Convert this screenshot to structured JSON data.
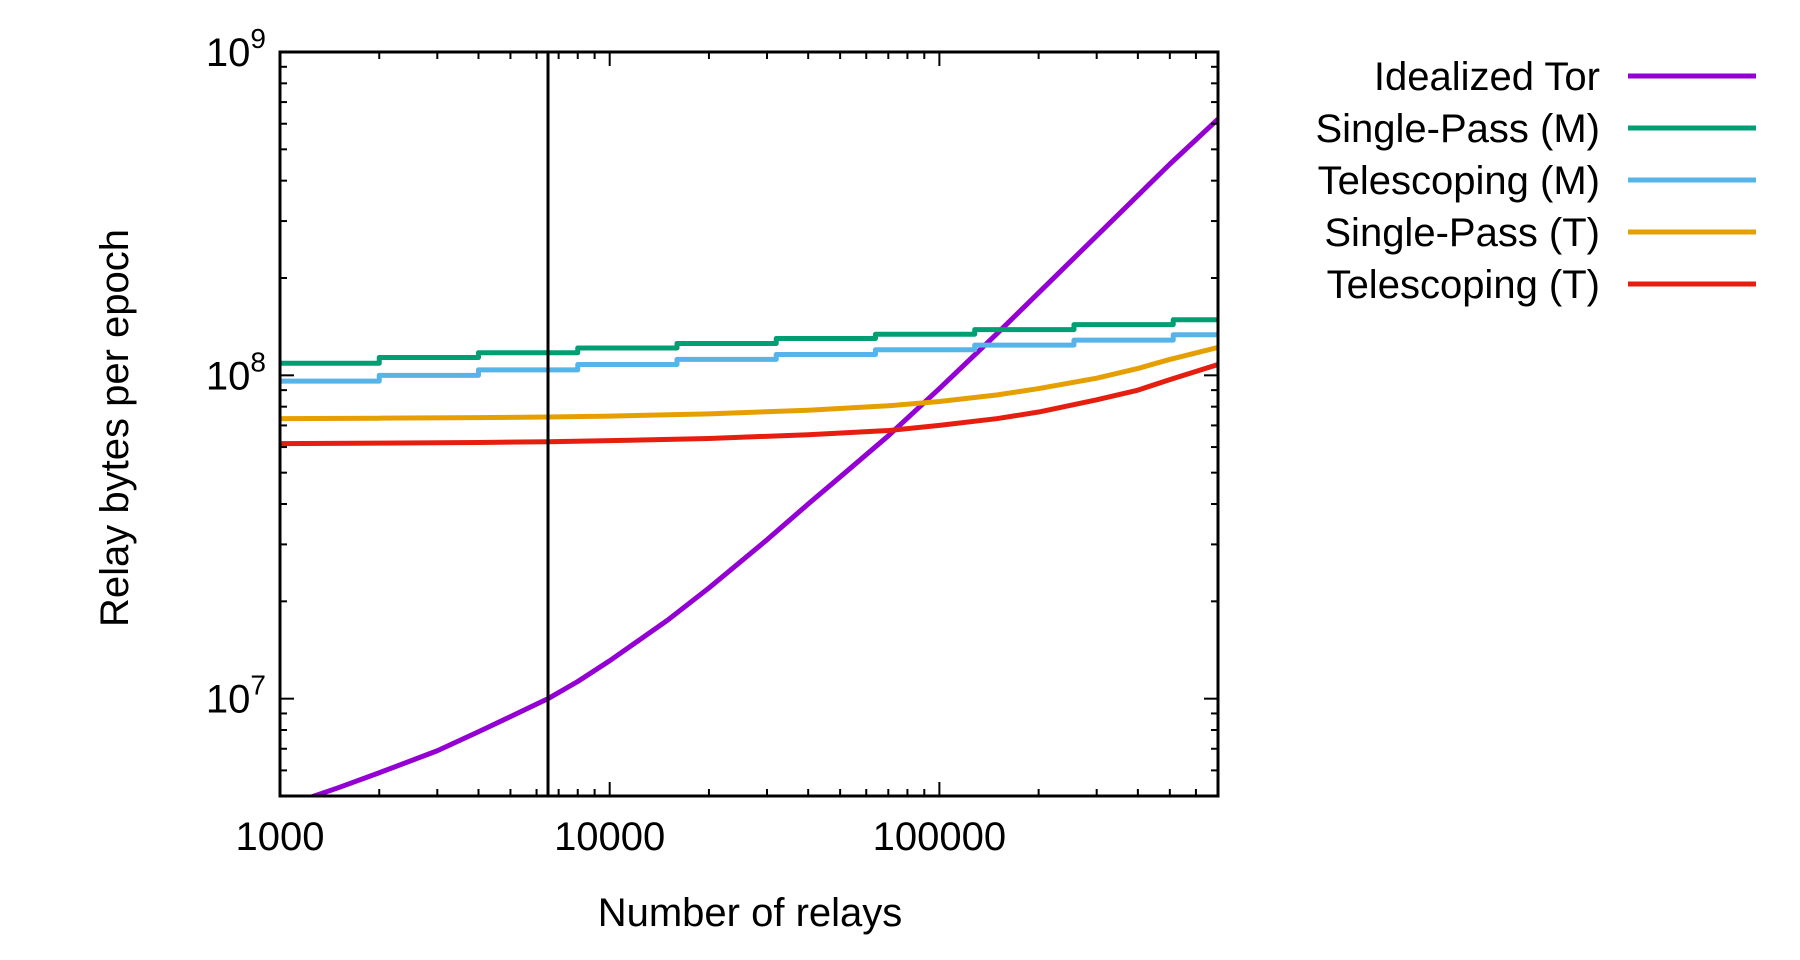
{
  "chart_data": {
    "type": "line",
    "title": "",
    "xlabel": "Number of relays",
    "ylabel": "Relay bytes per epoch",
    "xscale": "log",
    "yscale": "log",
    "xlim": [
      1000,
      700000
    ],
    "ylim": [
      5000000,
      1000000000
    ],
    "x_ticks": [
      {
        "value": 1000,
        "label": "1000"
      },
      {
        "value": 10000,
        "label": "10000"
      },
      {
        "value": 100000,
        "label": "100000"
      }
    ],
    "y_ticks": [
      {
        "value": 10000000,
        "base": "10",
        "exp": "7"
      },
      {
        "value": 100000000,
        "base": "10",
        "exp": "8"
      },
      {
        "value": 1000000000,
        "base": "10",
        "exp": "9"
      }
    ],
    "grid": false,
    "legend_position": "outside-right-top",
    "reference_line": {
      "x": 6500
    },
    "series": [
      {
        "name": "Idealized Tor",
        "color": "#9400d3",
        "x": [
          1000,
          1500,
          2000,
          3000,
          4000,
          5000,
          6500,
          8000,
          10000,
          15000,
          20000,
          30000,
          40000,
          50000,
          70000,
          100000,
          150000,
          200000,
          300000,
          400000,
          500000,
          700000
        ],
        "y": [
          4600000,
          5300000,
          5900000,
          6900000,
          7900000,
          8800000,
          10000000,
          11300000,
          13100000,
          17500000,
          22000000,
          31000000,
          40000000,
          48500000,
          65000000,
          91000000,
          135000000,
          180000000,
          270000000,
          360000000,
          450000000,
          620000000
        ]
      },
      {
        "name": "Single-Pass (M)",
        "color": "#009e73",
        "x": [
          1000,
          2000,
          2000,
          4000,
          4000,
          8000,
          8000,
          16000,
          16000,
          32000,
          32000,
          64000,
          64000,
          128000,
          128000,
          256000,
          256000,
          512000,
          512000,
          700000
        ],
        "y": [
          109000000,
          109000000,
          113500000,
          113500000,
          117500000,
          117500000,
          121500000,
          121500000,
          125500000,
          125500000,
          130000000,
          130000000,
          134000000,
          134000000,
          138500000,
          138500000,
          143500000,
          143500000,
          148500000,
          148500000
        ]
      },
      {
        "name": "Telescoping (M)",
        "color": "#56b4e9",
        "x": [
          1000,
          2000,
          2000,
          4000,
          4000,
          8000,
          8000,
          16000,
          16000,
          32000,
          32000,
          64000,
          64000,
          128000,
          128000,
          256000,
          256000,
          512000,
          512000,
          700000
        ],
        "y": [
          96000000,
          96000000,
          100000000,
          100000000,
          104000000,
          104000000,
          108000000,
          108000000,
          112000000,
          112000000,
          116000000,
          116000000,
          120000000,
          120000000,
          124000000,
          124000000,
          128500000,
          128500000,
          133500000,
          133500000
        ]
      },
      {
        "name": "Single-Pass (T)",
        "color": "#e69f00",
        "x": [
          1000,
          2000,
          4000,
          6500,
          10000,
          20000,
          40000,
          70000,
          100000,
          150000,
          200000,
          300000,
          400000,
          500000,
          700000
        ],
        "y": [
          73500000,
          73700000,
          74000000,
          74300000,
          74800000,
          76000000,
          78000000,
          80500000,
          83000000,
          87000000,
          91000000,
          98000000,
          105000000,
          112000000,
          122000000
        ]
      },
      {
        "name": "Telescoping (T)",
        "color": "#e51e10",
        "x": [
          1000,
          2000,
          4000,
          6500,
          10000,
          20000,
          40000,
          70000,
          100000,
          150000,
          200000,
          300000,
          400000,
          500000,
          700000
        ],
        "y": [
          61500000,
          61700000,
          62000000,
          62300000,
          62800000,
          63800000,
          65500000,
          67500000,
          70000000,
          73500000,
          77000000,
          84000000,
          90000000,
          97000000,
          108000000
        ]
      }
    ]
  }
}
